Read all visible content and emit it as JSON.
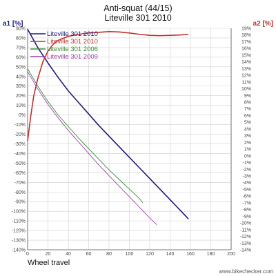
{
  "chart_data": {
    "type": "line",
    "title": "Anti-squat (44/15)",
    "subtitle": "Liteville 301 2010",
    "xlabel": "Wheel travel",
    "ylabel_left": "a1 [%]",
    "ylabel_right": "a2 [%]",
    "xlim": [
      0,
      200
    ],
    "ylim_left": [
      -140,
      90
    ],
    "ylim_right": [
      -14,
      19
    ],
    "x_ticks": [
      0,
      20,
      40,
      60,
      80,
      100,
      120,
      140,
      160,
      180,
      200
    ],
    "y_ticks_left": [
      90,
      80,
      70,
      60,
      50,
      40,
      30,
      20,
      10,
      0,
      -10,
      -20,
      -30,
      -40,
      -50,
      -60,
      -70,
      -80,
      -90,
      -100,
      -110,
      -120,
      -130,
      -140
    ],
    "y_ticks_right": [
      19,
      18,
      17,
      16,
      15,
      14,
      13,
      12,
      11,
      10,
      9,
      8,
      7,
      6,
      5,
      4,
      3,
      2,
      1,
      0,
      -1,
      -2,
      -3,
      -4,
      -5,
      -6,
      -7,
      -8,
      -9,
      -10,
      -11,
      -12,
      -13,
      -14
    ],
    "grid": true,
    "legend_position": "top-left",
    "series": [
      {
        "name": "Liteville 301 2010",
        "axis": "left",
        "color": "#1a1a7a",
        "points": [
          [
            0,
            89
          ],
          [
            10,
            70
          ],
          [
            20,
            54
          ],
          [
            30,
            39
          ],
          [
            40,
            25
          ],
          [
            50,
            13
          ],
          [
            60,
            1
          ],
          [
            70,
            -11
          ],
          [
            80,
            -22
          ],
          [
            90,
            -33
          ],
          [
            100,
            -44
          ],
          [
            110,
            -55
          ],
          [
            120,
            -66
          ],
          [
            130,
            -77
          ],
          [
            140,
            -88
          ],
          [
            150,
            -99
          ],
          [
            158,
            -108
          ]
        ]
      },
      {
        "name": "Liteville 301 2010",
        "axis": "right",
        "color": "#c0302a",
        "points": [
          [
            0,
            2.2
          ],
          [
            3,
            5.8
          ],
          [
            6,
            8.9
          ],
          [
            10,
            11.5
          ],
          [
            15,
            14.0
          ],
          [
            20,
            15.6
          ],
          [
            25,
            16.6
          ],
          [
            30,
            17.2
          ],
          [
            40,
            17.8
          ],
          [
            50,
            18.1
          ],
          [
            60,
            18.3
          ],
          [
            70,
            18.4
          ],
          [
            80,
            18.5
          ],
          [
            90,
            18.45
          ],
          [
            100,
            18.3
          ],
          [
            110,
            18.1
          ],
          [
            120,
            17.95
          ],
          [
            130,
            17.9
          ],
          [
            140,
            17.95
          ],
          [
            150,
            18.0
          ],
          [
            158,
            18.1
          ]
        ]
      },
      {
        "name": "Liteville 301 2006",
        "axis": "left",
        "color": "#3a8a3a",
        "points": [
          [
            0,
            48
          ],
          [
            10,
            30
          ],
          [
            20,
            14
          ],
          [
            30,
            0
          ],
          [
            40,
            -12
          ],
          [
            50,
            -24
          ],
          [
            60,
            -35
          ],
          [
            70,
            -46
          ],
          [
            80,
            -57
          ],
          [
            90,
            -67
          ],
          [
            100,
            -77
          ],
          [
            110,
            -87
          ],
          [
            113,
            -91
          ]
        ]
      },
      {
        "name": "Liteville 301 2009",
        "axis": "left",
        "color": "#a040a8",
        "points": [
          [
            0,
            45
          ],
          [
            10,
            27
          ],
          [
            20,
            11
          ],
          [
            30,
            -3
          ],
          [
            40,
            -16
          ],
          [
            50,
            -28
          ],
          [
            60,
            -40
          ],
          [
            70,
            -52
          ],
          [
            80,
            -63
          ],
          [
            90,
            -74
          ],
          [
            100,
            -85
          ],
          [
            110,
            -96
          ],
          [
            120,
            -107
          ],
          [
            127,
            -114
          ]
        ]
      }
    ]
  },
  "watermark": "www.bikechecker.com"
}
